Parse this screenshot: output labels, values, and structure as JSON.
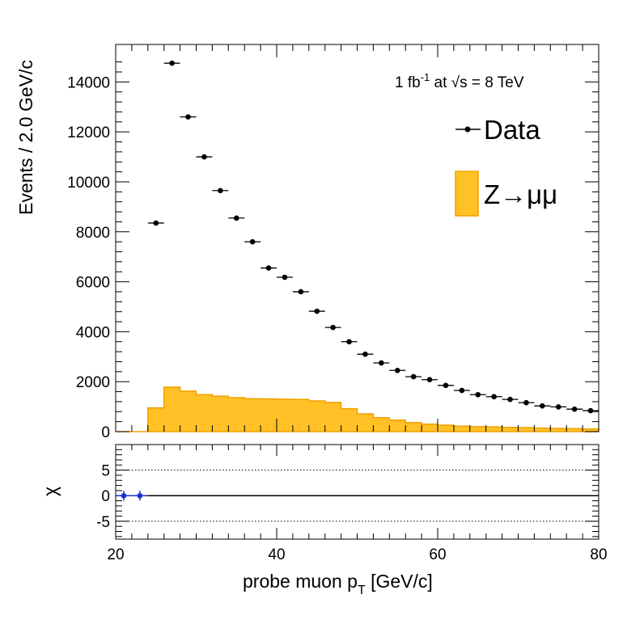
{
  "chart_data": [
    {
      "type": "bar",
      "panel": "main",
      "xlim": [
        20,
        80
      ],
      "ylim": [
        0,
        15500
      ],
      "xlabel": "probe muon pT [GeV/c]",
      "ylabel": "Events / 2.0 GeV/c",
      "y_ticks": [
        "0",
        "2000",
        "4000",
        "6000",
        "8000",
        "10000",
        "12000",
        "14000"
      ],
      "annotation": "1 fb-1 at √s = 8 TeV",
      "legend": {
        "position": "top-right",
        "entries": [
          {
            "label": "Data",
            "style": "points",
            "color": "#000000"
          },
          {
            "label": "Z→μμ",
            "style": "fill",
            "color": "#ffc125",
            "edge": "#f0a000"
          }
        ]
      },
      "series": [
        {
          "name": "Data",
          "x": [
            25,
            27,
            29,
            31,
            33,
            35,
            37,
            39,
            41,
            43,
            45,
            47,
            49,
            51,
            53,
            55,
            57,
            59,
            61,
            63,
            65,
            67,
            69,
            71,
            73,
            75,
            77,
            79
          ],
          "values": [
            8350,
            14750,
            12600,
            11000,
            9650,
            8550,
            7600,
            6550,
            6180,
            5600,
            4820,
            4170,
            3600,
            3100,
            2750,
            2450,
            2200,
            2080,
            1850,
            1650,
            1480,
            1400,
            1290,
            1160,
            1030,
            990,
            900,
            840
          ]
        },
        {
          "name": "Z→μμ",
          "bin_edges": [
            20,
            24,
            26,
            28,
            30,
            32,
            34,
            36,
            38,
            40,
            42,
            44,
            46,
            48,
            50,
            52,
            54,
            56,
            58,
            60,
            62,
            64,
            66,
            68,
            70,
            72,
            74,
            76,
            78,
            80
          ],
          "values": [
            0,
            950,
            1780,
            1620,
            1480,
            1420,
            1360,
            1320,
            1310,
            1300,
            1290,
            1230,
            1170,
            920,
            710,
            560,
            460,
            360,
            300,
            260,
            220,
            200,
            190,
            170,
            160,
            140,
            130,
            120,
            110
          ]
        }
      ]
    },
    {
      "type": "scatter",
      "panel": "ratio",
      "xlim": [
        20,
        80
      ],
      "ylim": [
        -8.5,
        10
      ],
      "ylabel": "χ",
      "x_ticks": [
        "20",
        "40",
        "60",
        "80"
      ],
      "y_ticks": [
        "-5",
        "0",
        "5"
      ],
      "reference_lines": [
        -5,
        0,
        5
      ],
      "series": [
        {
          "name": "",
          "x": [
            21,
            23
          ],
          "values": [
            0,
            0
          ],
          "color": "#1a2fd0"
        }
      ]
    }
  ]
}
